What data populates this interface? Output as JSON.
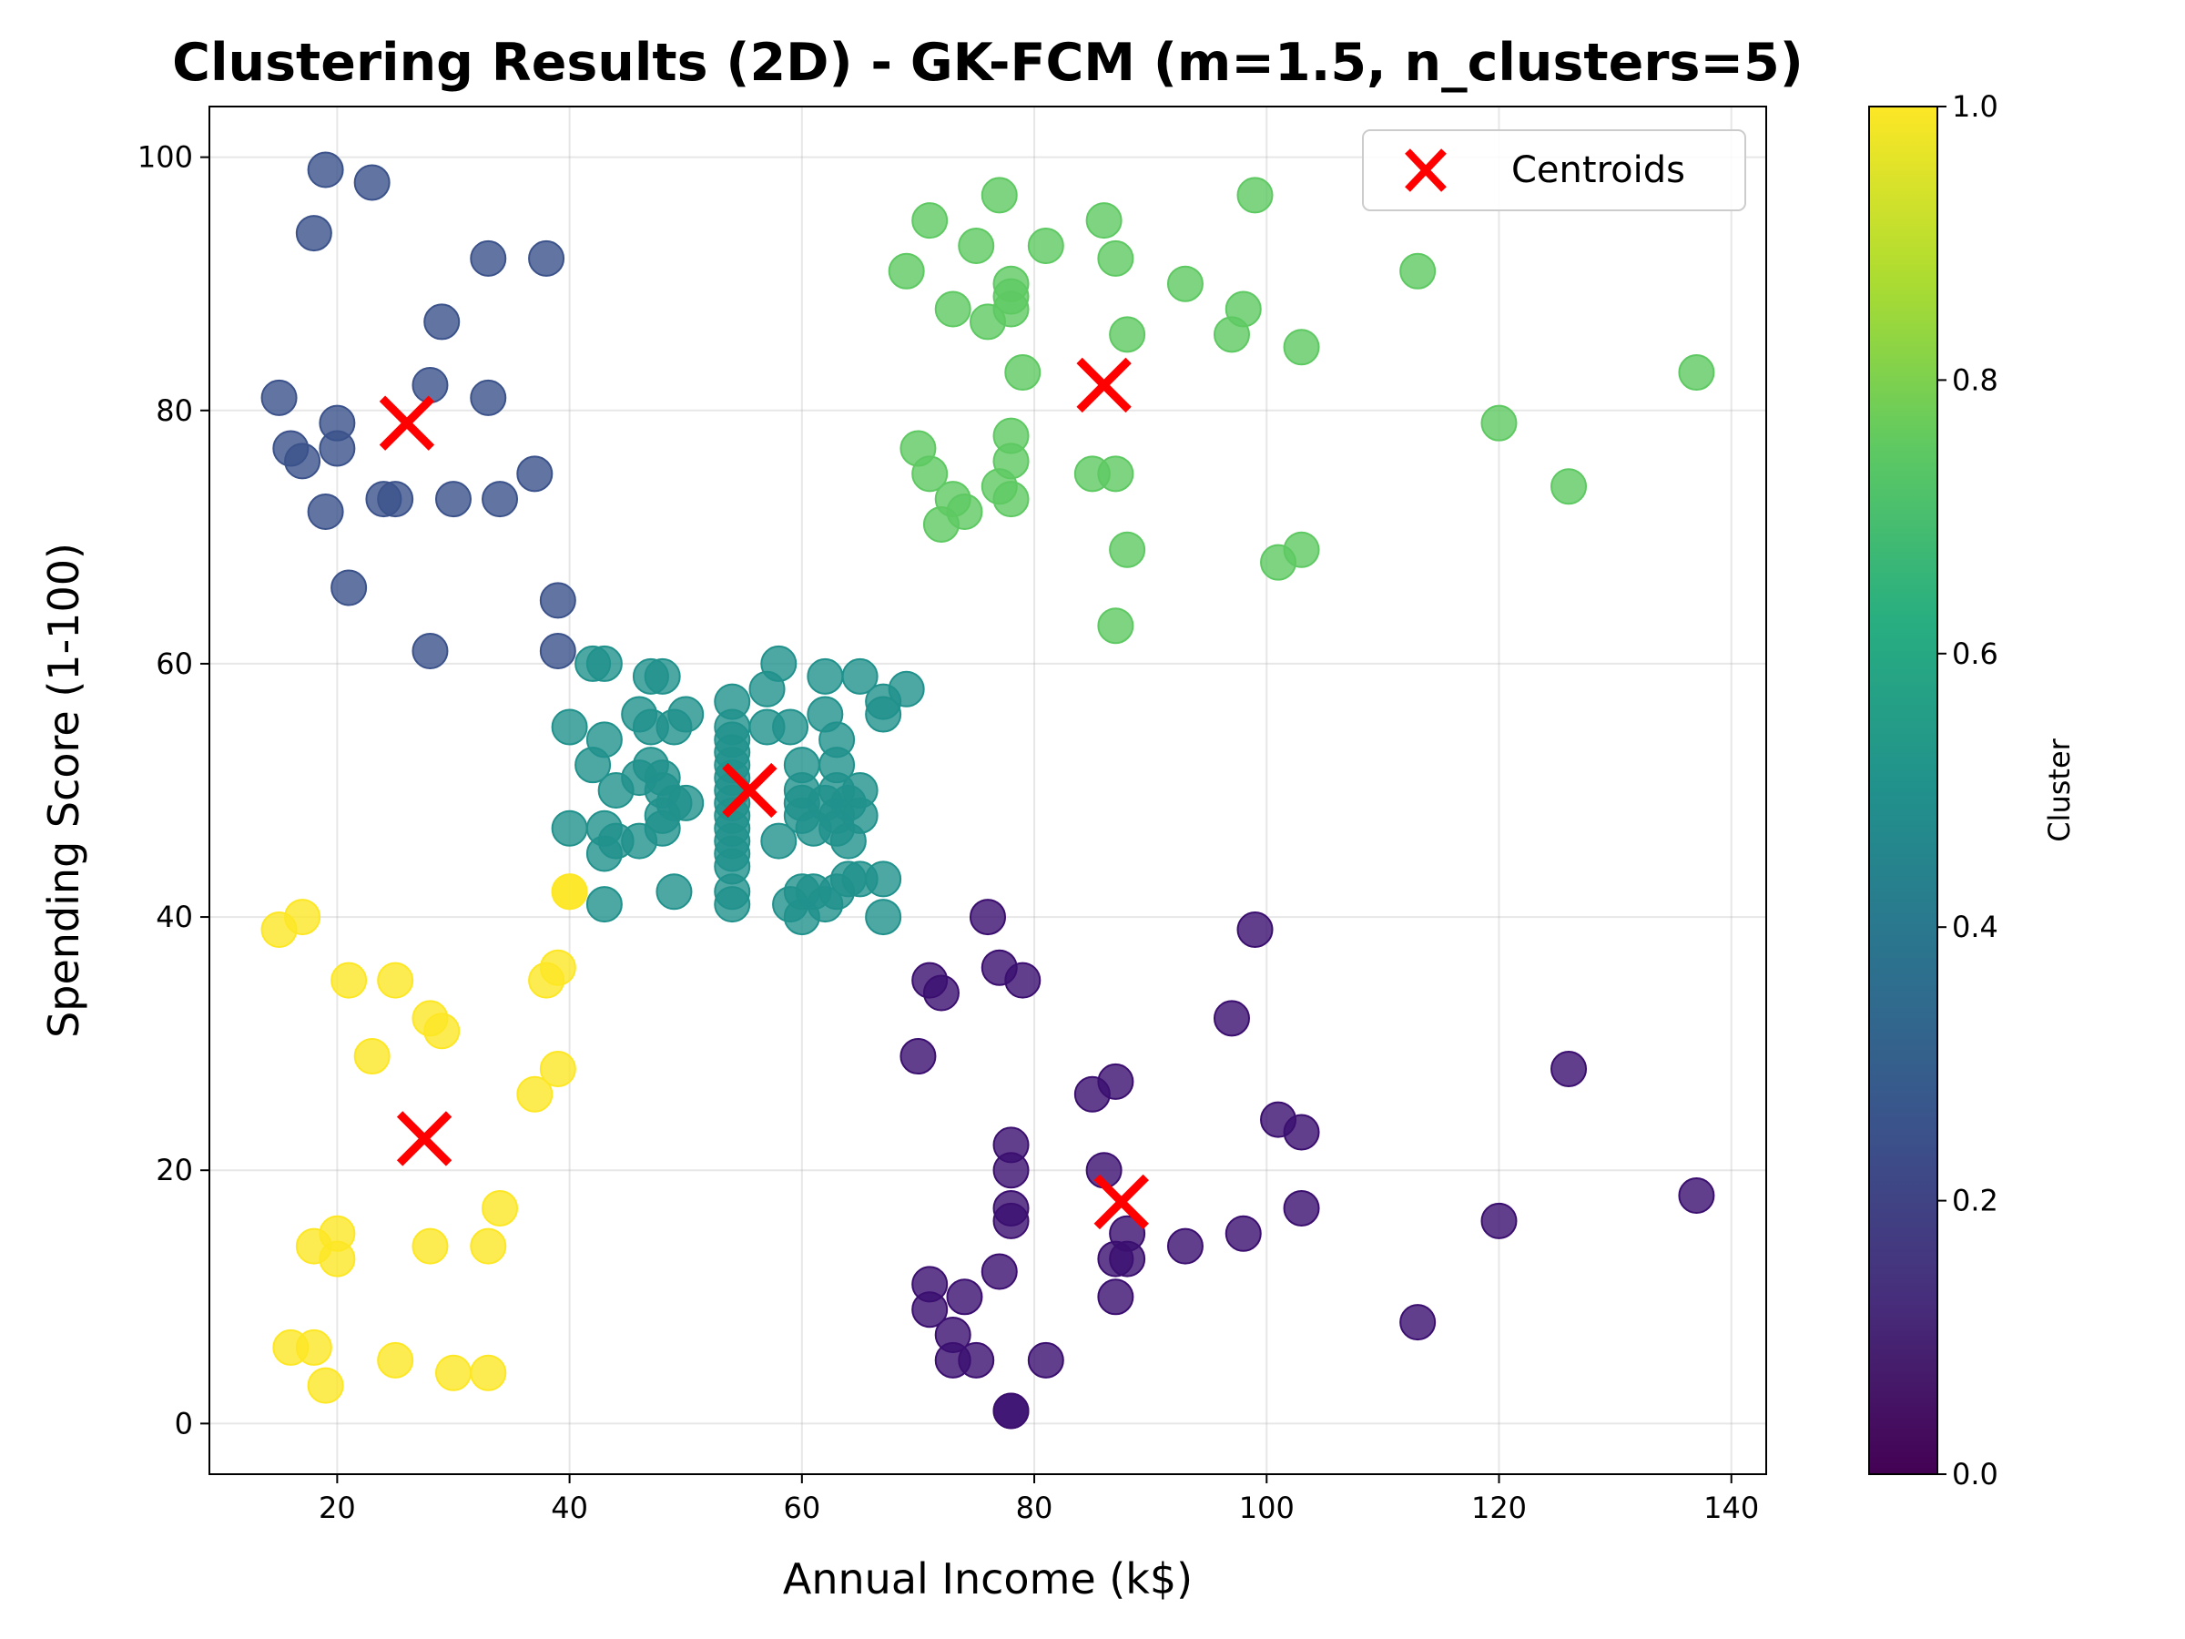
{
  "chart_data": {
    "type": "scatter",
    "title": "Clustering Results (2D) - GK-FCM (m=1.5, n_clusters=5)",
    "xlabel": "Annual Income (k$)",
    "ylabel": "Spending Score (1-100)",
    "xlim": [
      9,
      143
    ],
    "ylim": [
      -4,
      104
    ],
    "xticks": [
      20,
      40,
      60,
      80,
      100,
      120,
      140
    ],
    "yticks": [
      0,
      20,
      40,
      60,
      80,
      100
    ],
    "grid": true,
    "legend": {
      "placement": "top-right",
      "entries": [
        "Centroids"
      ]
    },
    "colorbar": {
      "label": "Cluster",
      "colormap": "viridis",
      "range": [
        0.0,
        1.0
      ],
      "ticks": [
        "0.0",
        "0.2",
        "0.4",
        "0.6",
        "0.8",
        "1.0"
      ]
    },
    "cluster_colors": {
      "0.0": "#3b0f70",
      "0.25": "#3b528b",
      "0.5": "#21918c",
      "0.75": "#5ec962",
      "1.0": "#fde725"
    },
    "series": [
      {
        "cluster": 0.25,
        "points": [
          [
            19,
            99
          ],
          [
            23,
            98
          ],
          [
            18,
            94
          ],
          [
            33,
            92
          ],
          [
            38,
            92
          ],
          [
            29,
            87
          ],
          [
            15,
            81
          ],
          [
            28,
            82
          ],
          [
            33,
            81
          ],
          [
            20,
            79
          ],
          [
            16,
            77
          ],
          [
            17,
            76
          ],
          [
            20,
            77
          ],
          [
            37,
            75
          ],
          [
            24,
            73
          ],
          [
            25,
            73
          ],
          [
            30,
            73
          ],
          [
            34,
            73
          ],
          [
            19,
            72
          ],
          [
            21,
            66
          ],
          [
            39,
            65
          ],
          [
            28,
            61
          ],
          [
            39,
            61
          ]
        ]
      },
      {
        "cluster": 0.5,
        "points": [
          [
            42,
            60
          ],
          [
            43,
            60
          ],
          [
            47,
            59
          ],
          [
            48,
            59
          ],
          [
            58,
            60
          ],
          [
            54,
            57
          ],
          [
            57,
            58
          ],
          [
            62,
            59
          ],
          [
            65,
            59
          ],
          [
            67,
            57
          ],
          [
            69,
            58
          ],
          [
            40,
            55
          ],
          [
            43,
            54
          ],
          [
            46,
            56
          ],
          [
            47,
            55
          ],
          [
            49,
            55
          ],
          [
            50,
            56
          ],
          [
            54,
            55
          ],
          [
            54,
            54
          ],
          [
            54,
            53
          ],
          [
            57,
            55
          ],
          [
            59,
            55
          ],
          [
            60,
            52
          ],
          [
            62,
            56
          ],
          [
            63,
            54
          ],
          [
            67,
            56
          ],
          [
            42,
            52
          ],
          [
            44,
            50
          ],
          [
            46,
            51
          ],
          [
            47,
            52
          ],
          [
            48,
            51
          ],
          [
            48,
            50
          ],
          [
            49,
            49
          ],
          [
            50,
            49
          ],
          [
            54,
            52
          ],
          [
            54,
            51
          ],
          [
            54,
            50
          ],
          [
            54,
            49
          ],
          [
            60,
            50
          ],
          [
            60,
            49
          ],
          [
            62,
            49
          ],
          [
            63,
            52
          ],
          [
            63,
            50
          ],
          [
            64,
            49
          ],
          [
            65,
            50
          ],
          [
            48,
            48
          ],
          [
            48,
            47
          ],
          [
            43,
            47
          ],
          [
            40,
            47
          ],
          [
            43,
            45
          ],
          [
            44,
            46
          ],
          [
            46,
            46
          ],
          [
            54,
            48
          ],
          [
            54,
            47
          ],
          [
            54,
            46
          ],
          [
            54,
            45
          ],
          [
            54,
            44
          ],
          [
            58,
            46
          ],
          [
            60,
            48
          ],
          [
            61,
            47
          ],
          [
            63,
            48
          ],
          [
            63,
            47
          ],
          [
            64,
            46
          ],
          [
            65,
            48
          ],
          [
            54,
            42
          ],
          [
            54,
            41
          ],
          [
            59,
            41
          ],
          [
            60,
            40
          ],
          [
            60,
            42
          ],
          [
            61,
            42
          ],
          [
            62,
            41
          ],
          [
            63,
            42
          ],
          [
            64,
            43
          ],
          [
            65,
            43
          ],
          [
            67,
            43
          ],
          [
            67,
            40
          ],
          [
            49,
            42
          ],
          [
            43,
            41
          ]
        ]
      },
      {
        "cluster": 0.75,
        "points": [
          [
            77,
            97
          ],
          [
            99,
            97
          ],
          [
            71,
            95
          ],
          [
            86,
            95
          ],
          [
            75,
            93
          ],
          [
            81,
            93
          ],
          [
            69,
            91
          ],
          [
            78,
            90
          ],
          [
            78,
            89
          ],
          [
            87,
            92
          ],
          [
            93,
            90
          ],
          [
            113,
            91
          ],
          [
            73,
            88
          ],
          [
            76,
            87
          ],
          [
            78,
            88
          ],
          [
            98,
            88
          ],
          [
            88,
            86
          ],
          [
            97,
            86
          ],
          [
            103,
            85
          ],
          [
            79,
            83
          ],
          [
            137,
            83
          ],
          [
            120,
            79
          ],
          [
            70,
            77
          ],
          [
            78,
            78
          ],
          [
            78,
            76
          ],
          [
            71,
            75
          ],
          [
            85,
            75
          ],
          [
            87,
            75
          ],
          [
            73,
            73
          ],
          [
            74,
            72
          ],
          [
            77,
            74
          ],
          [
            78,
            73
          ],
          [
            72,
            71
          ],
          [
            126,
            74
          ],
          [
            88,
            69
          ],
          [
            101,
            68
          ],
          [
            103,
            69
          ],
          [
            87,
            63
          ]
        ]
      },
      {
        "cluster": 0.0,
        "points": [
          [
            76,
            40
          ],
          [
            99,
            39
          ],
          [
            71,
            35
          ],
          [
            72,
            34
          ],
          [
            77,
            36
          ],
          [
            79,
            35
          ],
          [
            70,
            29
          ],
          [
            97,
            32
          ],
          [
            85,
            26
          ],
          [
            87,
            27
          ],
          [
            126,
            28
          ],
          [
            101,
            24
          ],
          [
            103,
            23
          ],
          [
            78,
            22
          ],
          [
            78,
            20
          ],
          [
            86,
            20
          ],
          [
            78,
            17
          ],
          [
            78,
            16
          ],
          [
            88,
            15
          ],
          [
            87,
            13
          ],
          [
            88,
            13
          ],
          [
            93,
            14
          ],
          [
            98,
            15
          ],
          [
            103,
            17
          ],
          [
            120,
            16
          ],
          [
            137,
            18
          ],
          [
            71,
            11
          ],
          [
            71,
            9
          ],
          [
            74,
            10
          ],
          [
            77,
            12
          ],
          [
            87,
            10
          ],
          [
            73,
            7
          ],
          [
            73,
            5
          ],
          [
            75,
            5
          ],
          [
            81,
            5
          ],
          [
            113,
            8
          ],
          [
            78,
            1
          ],
          [
            78,
            1
          ]
        ]
      },
      {
        "cluster": 1.0,
        "points": [
          [
            40,
            42
          ],
          [
            40,
            42
          ],
          [
            15,
            39
          ],
          [
            17,
            40
          ],
          [
            21,
            35
          ],
          [
            25,
            35
          ],
          [
            28,
            32
          ],
          [
            29,
            31
          ],
          [
            39,
            36
          ],
          [
            38,
            35
          ],
          [
            23,
            29
          ],
          [
            37,
            26
          ],
          [
            39,
            28
          ],
          [
            34,
            17
          ],
          [
            18,
            14
          ],
          [
            20,
            15
          ],
          [
            20,
            13
          ],
          [
            28,
            14
          ],
          [
            33,
            14
          ],
          [
            16,
            6
          ],
          [
            18,
            6
          ],
          [
            19,
            3
          ],
          [
            25,
            5
          ],
          [
            30,
            4
          ],
          [
            33,
            4
          ]
        ]
      }
    ],
    "centroids": [
      [
        26,
        79
      ],
      [
        55.5,
        50
      ],
      [
        86,
        82
      ],
      [
        27.5,
        22.5
      ],
      [
        87.5,
        17.5
      ]
    ]
  }
}
